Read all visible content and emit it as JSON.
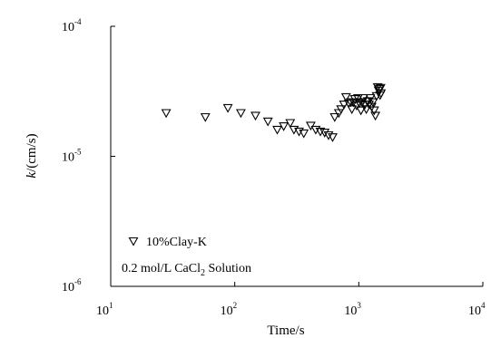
{
  "chart_data": {
    "type": "scatter",
    "xscale": "log",
    "yscale": "log",
    "xlim": [
      10,
      10000
    ],
    "ylim": [
      1e-06,
      0.0001
    ],
    "xlabel": "Time/s",
    "ylabel_italic": "k",
    "ylabel_rest": "/(cm/s)",
    "xticks": [
      {
        "base": "10",
        "exp": "1"
      },
      {
        "base": "10",
        "exp": "2"
      },
      {
        "base": "10",
        "exp": "3"
      },
      {
        "base": "10",
        "exp": "4"
      }
    ],
    "yticks": [
      {
        "base": "10",
        "exp": "-6"
      },
      {
        "base": "10",
        "exp": "-5"
      },
      {
        "base": "10",
        "exp": "-4"
      }
    ],
    "grid": false,
    "legend_position": "bottom-left",
    "legend": {
      "label": "10%Clay-K",
      "note_prefix": "0.2 mol/L CaCl",
      "note_sub": "2",
      "note_suffix": " Solution"
    },
    "marker": "inverted-triangle",
    "series": [
      {
        "name": "10%Clay-K",
        "points": [
          [
            28,
            2.15e-05
          ],
          [
            58,
            2e-05
          ],
          [
            88,
            2.35e-05
          ],
          [
            112,
            2.15e-05
          ],
          [
            147,
            2.05e-05
          ],
          [
            185,
            1.85e-05
          ],
          [
            220,
            1.6e-05
          ],
          [
            248,
            1.7e-05
          ],
          [
            280,
            1.8e-05
          ],
          [
            300,
            1.6e-05
          ],
          [
            330,
            1.55e-05
          ],
          [
            360,
            1.5e-05
          ],
          [
            410,
            1.72e-05
          ],
          [
            450,
            1.6e-05
          ],
          [
            490,
            1.55e-05
          ],
          [
            530,
            1.52e-05
          ],
          [
            570,
            1.45e-05
          ],
          [
            615,
            1.4e-05
          ],
          [
            640,
            2e-05
          ],
          [
            690,
            2.15e-05
          ],
          [
            720,
            2.3e-05
          ],
          [
            760,
            2.5e-05
          ],
          [
            790,
            2.85e-05
          ],
          [
            830,
            2.55e-05
          ],
          [
            860,
            2.6e-05
          ],
          [
            880,
            2.3e-05
          ],
          [
            905,
            2.6e-05
          ],
          [
            930,
            2.75e-05
          ],
          [
            960,
            2.45e-05
          ],
          [
            985,
            2.8e-05
          ],
          [
            1010,
            2.55e-05
          ],
          [
            1040,
            2.25e-05
          ],
          [
            1065,
            2.6e-05
          ],
          [
            1090,
            2.8e-05
          ],
          [
            1120,
            2.5e-05
          ],
          [
            1150,
            2.3e-05
          ],
          [
            1180,
            2.65e-05
          ],
          [
            1210,
            2.5e-05
          ],
          [
            1240,
            2.8e-05
          ],
          [
            1270,
            2.4e-05
          ],
          [
            1300,
            2.6e-05
          ],
          [
            1330,
            2.25e-05
          ],
          [
            1360,
            2.05e-05
          ],
          [
            1390,
            2.9e-05
          ],
          [
            1420,
            3.4e-05
          ],
          [
            1445,
            3.2e-05
          ],
          [
            1465,
            3.3e-05
          ],
          [
            1485,
            2.95e-05
          ],
          [
            1500,
            3.35e-05
          ],
          [
            1510,
            3.05e-05
          ]
        ]
      }
    ]
  }
}
